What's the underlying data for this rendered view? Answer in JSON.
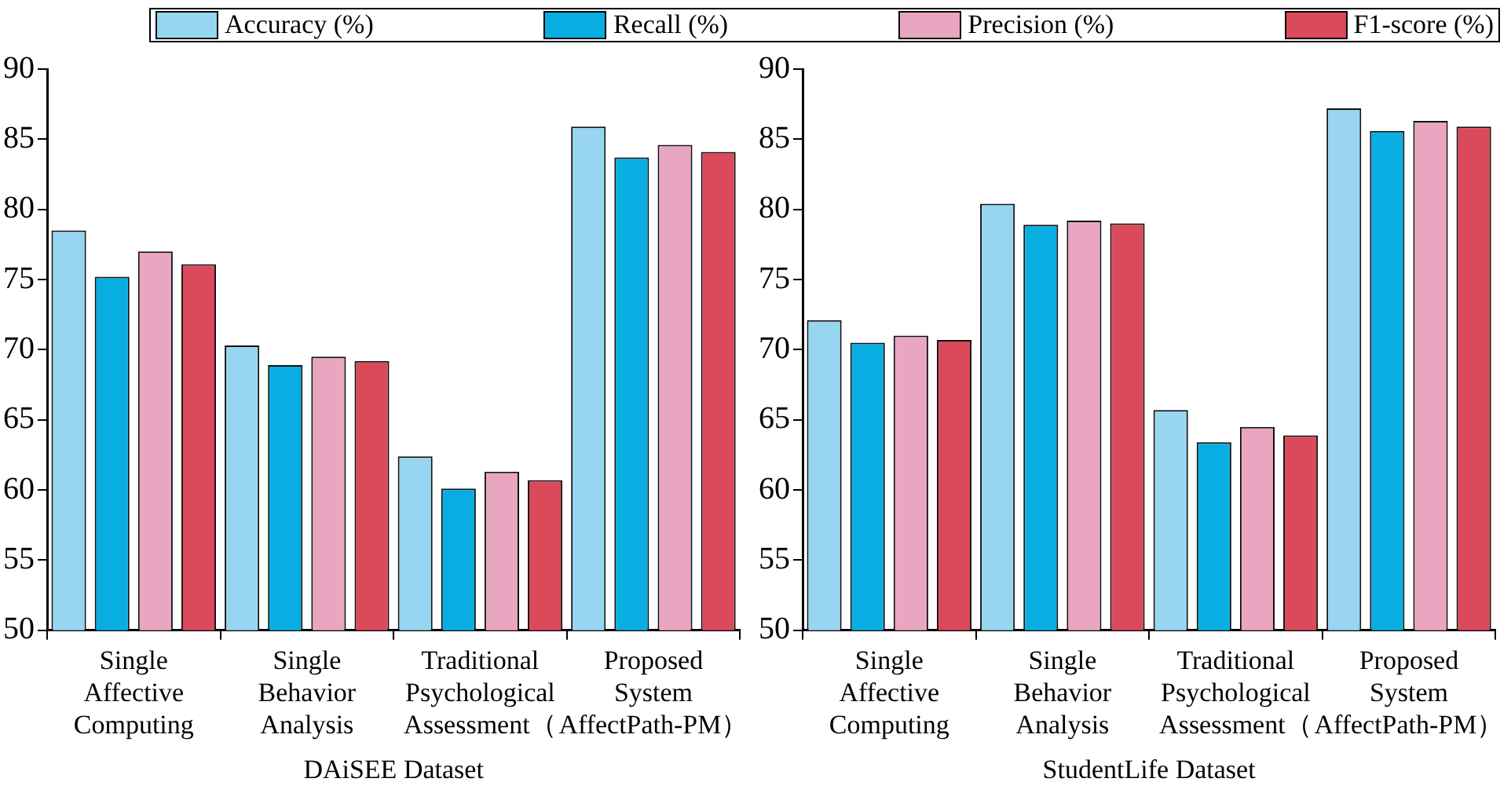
{
  "chart_data": [
    {
      "type": "bar",
      "xlabel": "DAiSEE Dataset",
      "categories": [
        "Single\nAffective\nComputing",
        "Single\nBehavior\nAnalysis",
        "Traditional\nPsychological\nAssessment（",
        "Proposed\nSystem\nAffectPath-PM）"
      ],
      "series": [
        {
          "name": "Accuracy (%)",
          "color": "#97d5f0",
          "values": [
            78.5,
            70.3,
            62.4,
            85.9
          ]
        },
        {
          "name": "Recall (%)",
          "color": "#08aee2",
          "values": [
            75.2,
            68.9,
            60.1,
            83.7
          ]
        },
        {
          "name": "Precision (%)",
          "color": "#e9a6c1",
          "values": [
            77.0,
            69.5,
            61.3,
            84.6
          ]
        },
        {
          "name": "F1-score (%)",
          "color": "#db4a5a",
          "values": [
            76.1,
            69.2,
            60.7,
            84.1
          ]
        }
      ],
      "ylim": [
        50,
        90
      ],
      "yticks": [
        50,
        55,
        60,
        65,
        70,
        75,
        80,
        85,
        90
      ],
      "grid": false,
      "legend": "top"
    },
    {
      "type": "bar",
      "xlabel": "StudentLife Dataset",
      "categories": [
        "Single\nAffective\nComputing",
        "Single\nBehavior\nAnalysis",
        "Traditional\nPsychological\nAssessment（",
        "Proposed\nSystem\nAffectPath-PM）"
      ],
      "series": [
        {
          "color": "#97d5f0",
          "values": [
            72.1,
            80.4,
            65.7,
            87.2
          ]
        },
        {
          "color": "#08aee2",
          "values": [
            70.5,
            78.9,
            63.4,
            85.6
          ]
        },
        {
          "color": "#e9a6c1",
          "values": [
            71.0,
            79.2,
            64.5,
            86.3
          ]
        },
        {
          "color": "#db4a5a",
          "values": [
            70.7,
            79.0,
            63.9,
            85.9
          ]
        }
      ],
      "ylim": [
        50,
        90
      ],
      "yticks": [
        50,
        55,
        60,
        65,
        70,
        75,
        80,
        85,
        90
      ],
      "grid": false,
      "legend": false
    }
  ]
}
